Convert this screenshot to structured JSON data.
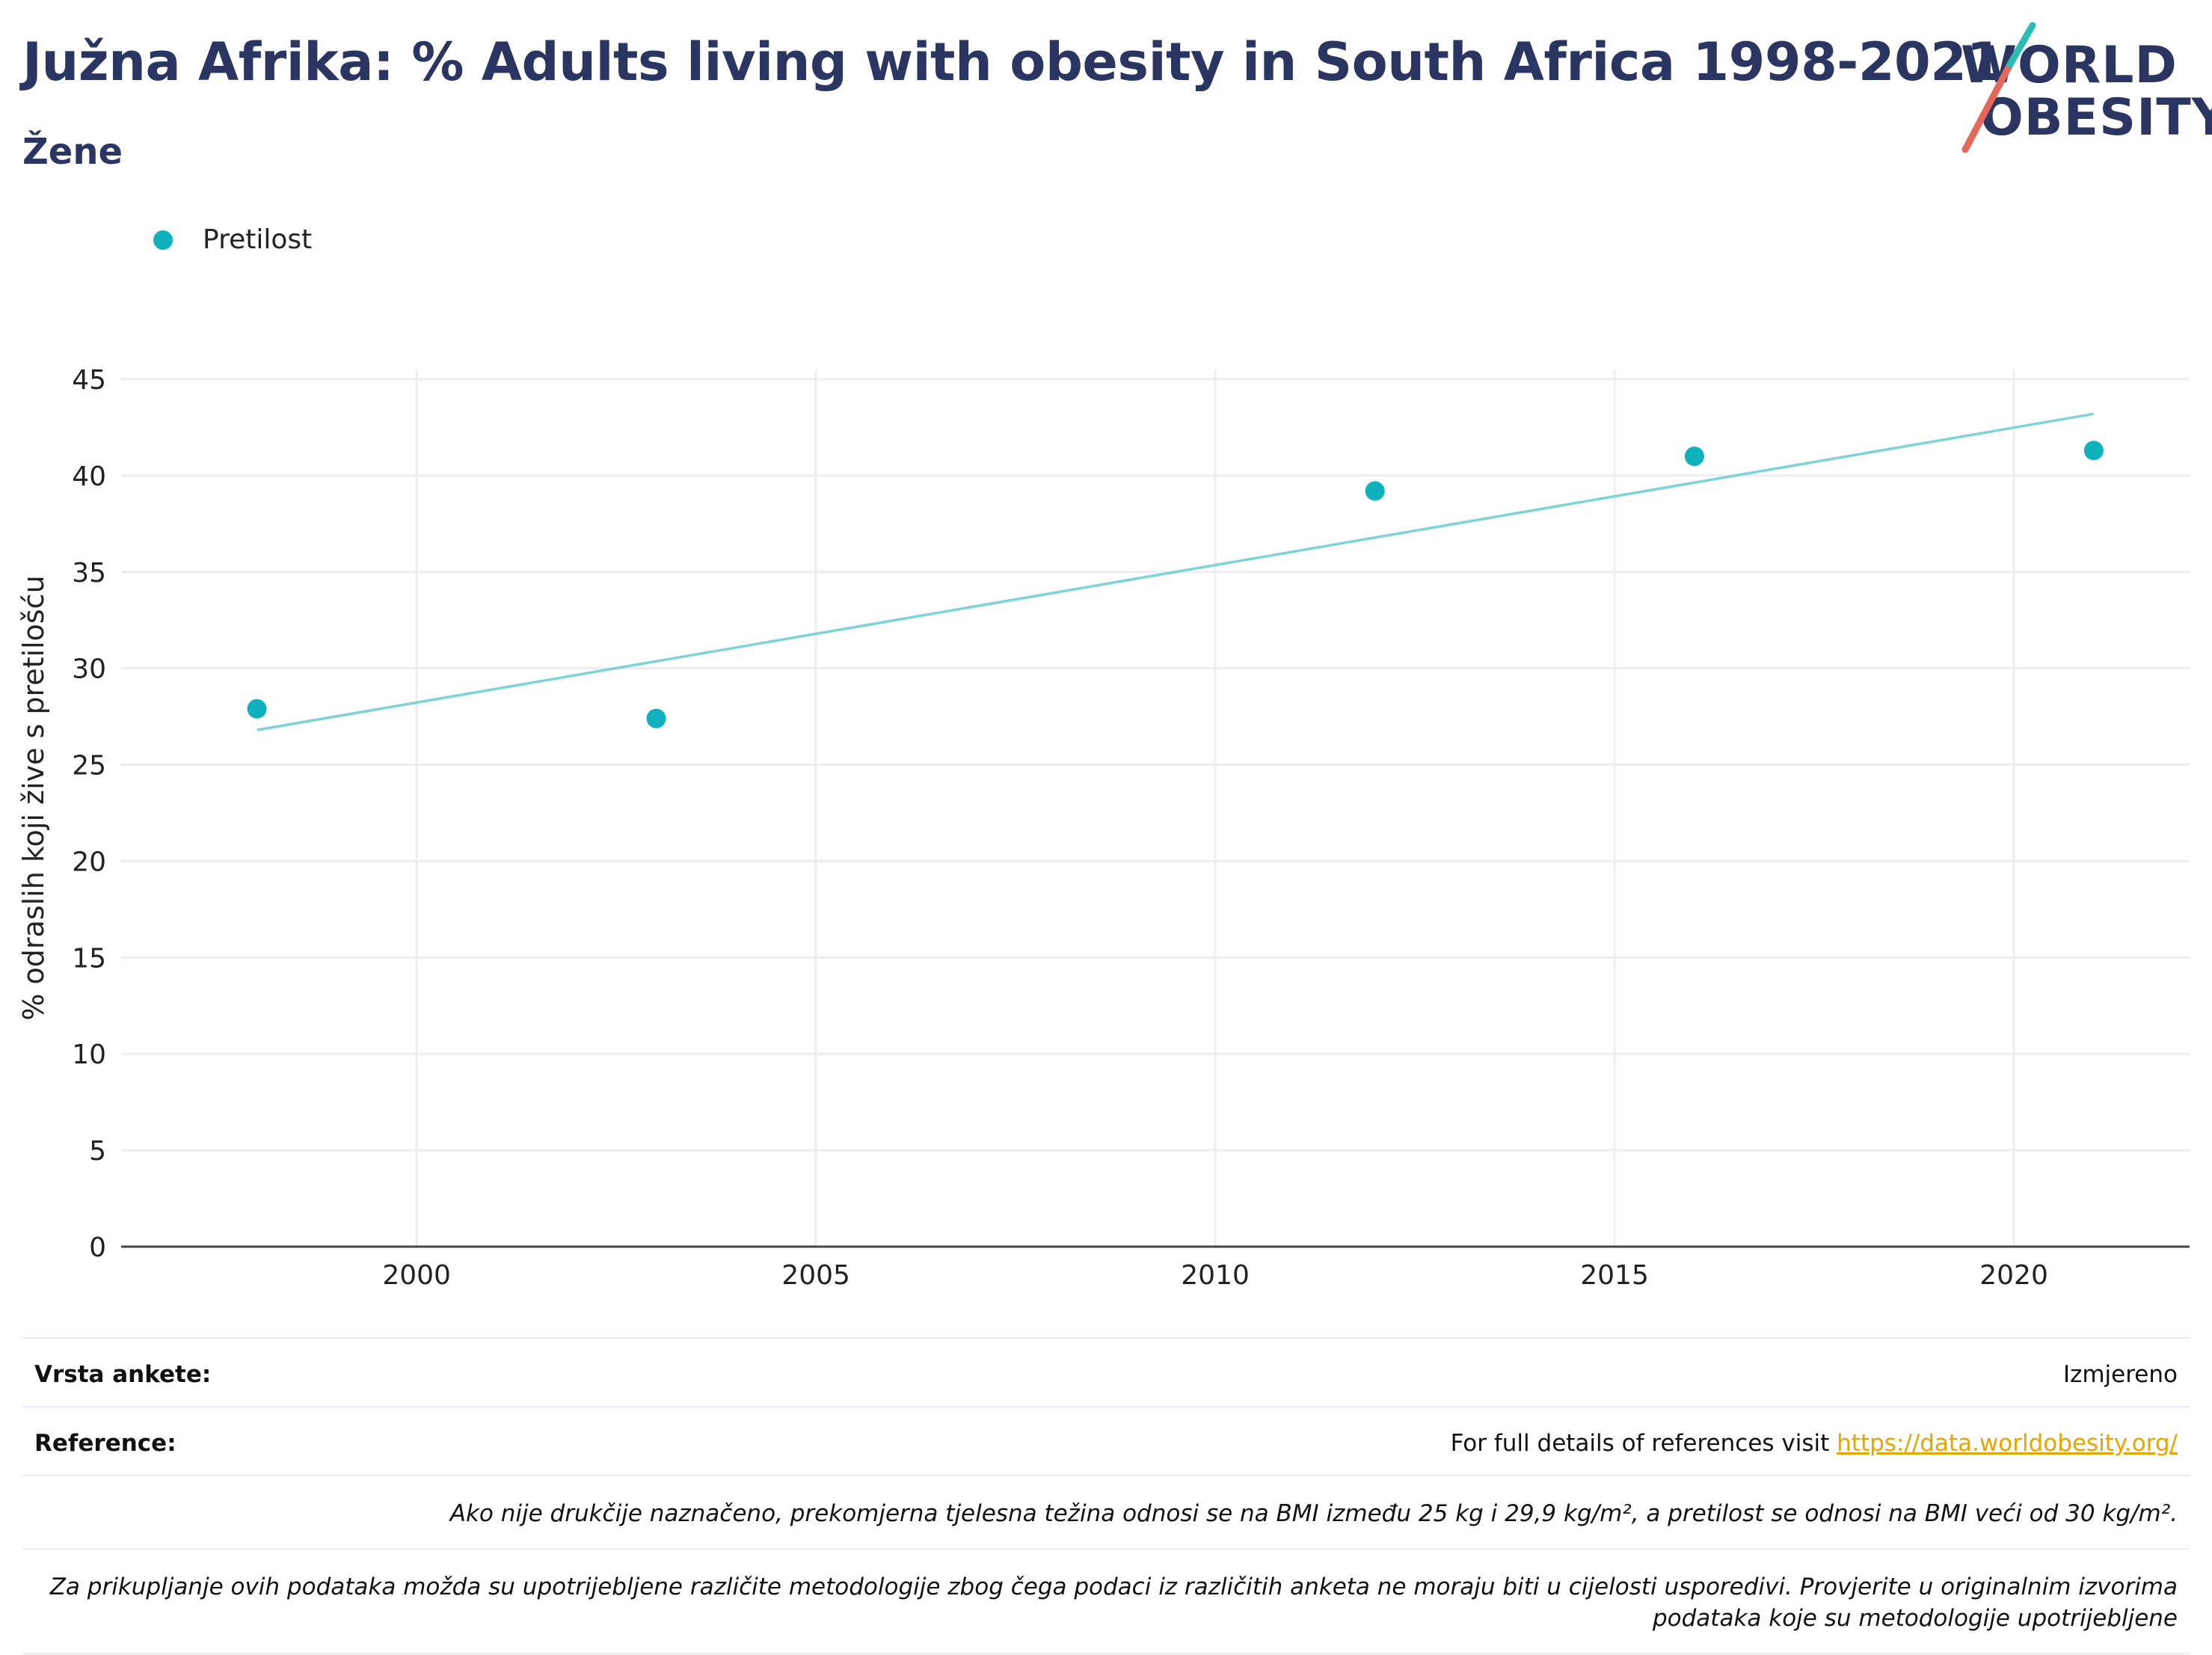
{
  "header": {
    "title": "Južna Afrika: % Adults living with obesity in South Africa 1998-2021",
    "subtitle": "Žene"
  },
  "logo": {
    "line1": "WORLD",
    "line2": "OBESITY",
    "accent_teal": "#2bbcb4",
    "accent_red": "#e4675b"
  },
  "legend": {
    "label": "Pretilost"
  },
  "colors": {
    "marker": "#0fb1bd",
    "trend": "#7dd4d8",
    "grid": "#eceef1",
    "text": "#222222",
    "title": "#2a3562"
  },
  "chart_data": {
    "type": "scatter",
    "ylabel": "% odraslih koji žive s pretilošću",
    "xlim": [
      1996.3,
      2022.2
    ],
    "ylim": [
      0,
      45
    ],
    "xticks": [
      2000,
      2005,
      2010,
      2015,
      2020
    ],
    "yticks": [
      0,
      5,
      10,
      15,
      20,
      25,
      30,
      35,
      40,
      45
    ],
    "grid": true,
    "legend_position": "top-left",
    "series": [
      {
        "name": "Pretilost",
        "x": [
          1998,
          2003,
          2012,
          2016,
          2021
        ],
        "y": [
          27.9,
          27.4,
          39.2,
          41.0,
          41.3
        ]
      }
    ],
    "trendline": {
      "x": [
        1998,
        2021
      ],
      "y": [
        26.8,
        43.2
      ]
    }
  },
  "footer": {
    "survey_label": "Vrsta ankete:",
    "survey_value": "Izmjereno",
    "ref_label": "Reference:",
    "ref_text": "For full details of references visit ",
    "ref_link": "https://data.worldobesity.org/",
    "note1": "Ako nije drukčije naznačeno, prekomjerna tjelesna težina odnosi se na BMI između 25 kg i 29,9 kg/m², a pretilost se odnosi na BMI veći od 30 kg/m².",
    "note2": "Za prikupljanje ovih podataka možda su upotrijebljene različite metodologije zbog čega podaci iz različitih anketa ne moraju biti u cijelosti usporedivi. Provjerite u originalnim izvorima podataka koje su metodologije upotrijebljene"
  }
}
